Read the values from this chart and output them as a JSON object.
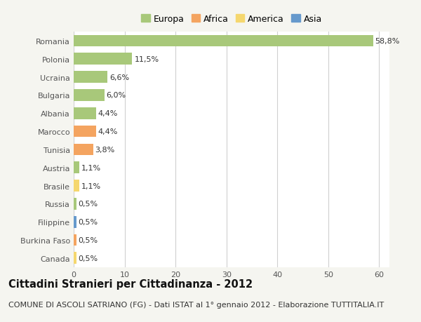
{
  "countries": [
    "Romania",
    "Polonia",
    "Ucraina",
    "Bulgaria",
    "Albania",
    "Marocco",
    "Tunisia",
    "Austria",
    "Brasile",
    "Russia",
    "Filippine",
    "Burkina Faso",
    "Canada"
  ],
  "values": [
    58.8,
    11.5,
    6.6,
    6.0,
    4.4,
    4.4,
    3.8,
    1.1,
    1.1,
    0.5,
    0.5,
    0.5,
    0.5
  ],
  "labels": [
    "58,8%",
    "11,5%",
    "6,6%",
    "6,0%",
    "4,4%",
    "4,4%",
    "3,8%",
    "1,1%",
    "1,1%",
    "0,5%",
    "0,5%",
    "0,5%",
    "0,5%"
  ],
  "continents": [
    "Europa",
    "Europa",
    "Europa",
    "Europa",
    "Europa",
    "Africa",
    "Africa",
    "Europa",
    "America",
    "Europa",
    "Asia",
    "Africa",
    "America"
  ],
  "continent_colors": {
    "Europa": "#a8c87a",
    "Africa": "#f4a460",
    "America": "#f5d76e",
    "Asia": "#6699cc"
  },
  "legend_order": [
    "Europa",
    "Africa",
    "America",
    "Asia"
  ],
  "xlim": [
    0,
    62
  ],
  "xticks": [
    0,
    10,
    20,
    30,
    40,
    50,
    60
  ],
  "background_color": "#f5f5f0",
  "plot_bg_color": "#ffffff",
  "grid_color": "#d0d0d0",
  "title": "Cittadini Stranieri per Cittadinanza - 2012",
  "subtitle": "COMUNE DI ASCOLI SATRIANO (FG) - Dati ISTAT al 1° gennaio 2012 - Elaborazione TUTTITALIA.IT",
  "title_fontsize": 10.5,
  "subtitle_fontsize": 8.0,
  "bar_height": 0.65,
  "label_fontsize": 8.0,
  "tick_fontsize": 8.0,
  "legend_fontsize": 9.0
}
